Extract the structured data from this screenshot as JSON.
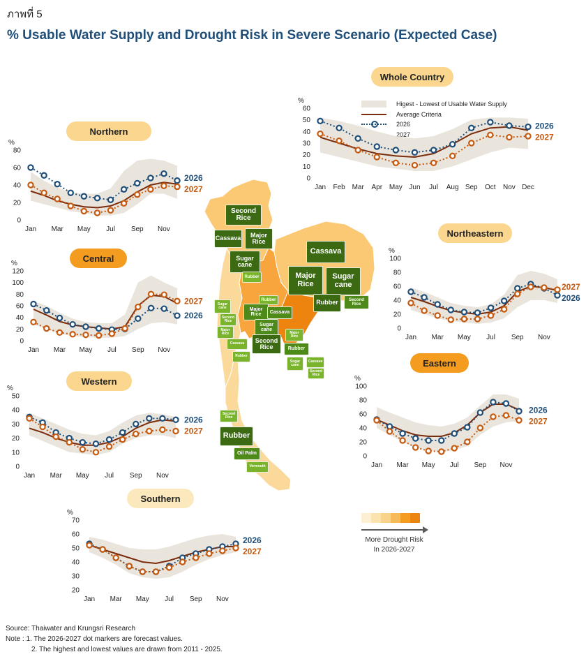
{
  "figure_label": "ภาพที่ 5",
  "title": "% Usable Water Supply and Drought Risk in Severe Scenario (Expected Case)",
  "colors": {
    "band": "#e9e5dc",
    "average": "#7b2c0c",
    "series_2026": "#1f4e79",
    "series_2027": "#c55a11",
    "pill_light": "#fbd68e",
    "pill_dark": "#f39c1f",
    "map_light": "#fbc874",
    "map_mid": "#f7a53c",
    "map_dark": "#ee8410",
    "map_pale": "#fbd99a"
  },
  "legend": {
    "band": "Higest - Lowest of Usable Water Supply",
    "average": "Average Criteria",
    "y2026": "2026",
    "y2027": "2027"
  },
  "chart_data": [
    {
      "id": "northern",
      "type": "line",
      "title": "Northern",
      "unit": "%",
      "ylim": [
        0,
        80
      ],
      "yticks": [
        0,
        20,
        40,
        60,
        80
      ],
      "x_ticks": [
        "Jan",
        "Mar",
        "May",
        "Jul",
        "Sep",
        "Nov"
      ],
      "x": [
        "Jan",
        "Feb",
        "Mar",
        "Apr",
        "May",
        "Jun",
        "Jul",
        "Aug",
        "Sep",
        "Oct",
        "Nov",
        "Dec"
      ],
      "band_high": [
        55,
        45,
        37,
        32,
        30,
        30,
        36,
        56,
        68,
        70,
        68,
        62
      ],
      "band_low": [
        22,
        18,
        14,
        10,
        8,
        5,
        5,
        8,
        18,
        30,
        30,
        24
      ],
      "average": [
        33,
        28,
        22,
        18,
        15,
        14,
        16,
        22,
        32,
        40,
        43,
        41
      ],
      "series": [
        {
          "name": "2026",
          "values": [
            60,
            51,
            41,
            31,
            27,
            25,
            23,
            35,
            42,
            48,
            53,
            45
          ]
        },
        {
          "name": "2027",
          "values": [
            40,
            31,
            24,
            16,
            10,
            8,
            11,
            19,
            29,
            35,
            39,
            38
          ]
        }
      ]
    },
    {
      "id": "central",
      "type": "line",
      "title": "Central",
      "unit": "%",
      "ylim": [
        0,
        120
      ],
      "yticks": [
        0,
        20,
        40,
        60,
        80,
        100,
        120
      ],
      "x_ticks": [
        "Jan",
        "Mar",
        "May",
        "Jul",
        "Sep",
        "Nov"
      ],
      "x": [
        "Jan",
        "Feb",
        "Mar",
        "Apr",
        "May",
        "Jun",
        "Jul",
        "Aug",
        "Sep",
        "Oct",
        "Nov",
        "Dec"
      ],
      "band_high": [
        68,
        60,
        48,
        38,
        32,
        30,
        30,
        45,
        100,
        112,
        100,
        90
      ],
      "band_low": [
        28,
        20,
        12,
        8,
        6,
        5,
        5,
        8,
        20,
        30,
        32,
        28
      ],
      "average": [
        54,
        44,
        33,
        27,
        24,
        22,
        20,
        24,
        60,
        78,
        76,
        64
      ],
      "series": [
        {
          "name": "2026",
          "values": [
            63,
            52,
            39,
            28,
            24,
            21,
            19,
            20,
            38,
            56,
            55,
            43
          ]
        },
        {
          "name": "2027",
          "values": [
            32,
            21,
            14,
            11,
            10,
            9,
            12,
            21,
            58,
            80,
            79,
            68
          ]
        }
      ]
    },
    {
      "id": "western",
      "type": "line",
      "title": "Western",
      "unit": "%",
      "ylim": [
        0,
        50
      ],
      "yticks": [
        0,
        10,
        20,
        30,
        40,
        50
      ],
      "x_ticks": [
        "Jan",
        "Mar",
        "May",
        "Jul",
        "Sep",
        "Nov"
      ],
      "x": [
        "Jan",
        "Feb",
        "Mar",
        "Apr",
        "May",
        "Jun",
        "Jul",
        "Aug",
        "Sep",
        "Oct",
        "Nov",
        "Dec"
      ],
      "band_high": [
        38,
        34,
        30,
        26,
        23,
        22,
        25,
        31,
        36,
        38,
        37,
        35
      ],
      "band_low": [
        22,
        18,
        14,
        10,
        9,
        8,
        10,
        16,
        20,
        22,
        22,
        20
      ],
      "average": [
        27,
        24,
        20,
        17,
        15,
        15,
        17,
        21,
        27,
        31,
        33,
        32
      ],
      "series": [
        {
          "name": "2026",
          "values": [
            35,
            31,
            24,
            20,
            17,
            16,
            19,
            24,
            30,
            34,
            34,
            33
          ]
        },
        {
          "name": "2027",
          "values": [
            34,
            28,
            21,
            17,
            12,
            10,
            14,
            19,
            23,
            25,
            26,
            25
          ]
        }
      ]
    },
    {
      "id": "southern",
      "type": "line",
      "title": "Southern",
      "unit": "%",
      "ylim": [
        20,
        70
      ],
      "yticks": [
        20,
        30,
        40,
        50,
        60,
        70
      ],
      "x_ticks": [
        "Jan",
        "Mar",
        "May",
        "Jul",
        "Sep",
        "Nov"
      ],
      "x": [
        "Jan",
        "Feb",
        "Mar",
        "Apr",
        "May",
        "Jun",
        "Jul",
        "Aug",
        "Sep",
        "Oct",
        "Nov",
        "Dec"
      ],
      "band_high": [
        58,
        56,
        53,
        50,
        49,
        49,
        51,
        54,
        57,
        59,
        60,
        58
      ],
      "band_low": [
        47,
        43,
        38,
        32,
        29,
        28,
        29,
        33,
        38,
        42,
        45,
        47
      ],
      "average": [
        52,
        49,
        46,
        43,
        40,
        39,
        41,
        44,
        47,
        49,
        51,
        51
      ],
      "series": [
        {
          "name": "2026",
          "values": [
            53,
            49,
            43,
            37,
            33,
            33,
            37,
            43,
            46,
            49,
            51,
            53
          ]
        },
        {
          "name": "2027",
          "values": [
            52,
            49,
            43,
            37,
            33,
            33,
            36,
            40,
            43,
            46,
            48,
            50
          ]
        }
      ]
    },
    {
      "id": "whole",
      "type": "line",
      "title": "Whole Country",
      "unit": "%",
      "ylim": [
        0,
        60
      ],
      "yticks": [
        0,
        10,
        20,
        30,
        40,
        50,
        60
      ],
      "x_ticks": [
        "Jan",
        "Feb",
        "Mar",
        "Apr",
        "May",
        "Jun",
        "Jul",
        "Aug",
        "Sep",
        "Oct",
        "Nov",
        "Dec"
      ],
      "x": [
        "Jan",
        "Feb",
        "Mar",
        "Apr",
        "May",
        "Jun",
        "Jul",
        "Aug",
        "Sep",
        "Oct",
        "Nov",
        "Dec"
      ],
      "band_high": [
        52,
        49,
        45,
        40,
        36,
        34,
        36,
        42,
        50,
        52,
        52,
        51
      ],
      "band_low": [
        22,
        18,
        14,
        10,
        8,
        6,
        6,
        10,
        16,
        22,
        26,
        25
      ],
      "average": [
        35,
        30,
        25,
        21,
        19,
        18,
        21,
        29,
        38,
        43,
        44,
        41
      ],
      "series": [
        {
          "name": "2026",
          "values": [
            49,
            43,
            34,
            27,
            24,
            22,
            24,
            29,
            43,
            48,
            45,
            44
          ]
        },
        {
          "name": "2027",
          "values": [
            38,
            32,
            24,
            18,
            13,
            11,
            13,
            19,
            30,
            37,
            35,
            36
          ]
        }
      ]
    },
    {
      "id": "northeastern",
      "type": "line",
      "title": "Northeastern",
      "unit": "%",
      "ylim": [
        0,
        100
      ],
      "yticks": [
        0,
        20,
        40,
        60,
        80,
        100
      ],
      "x_ticks": [
        "Jan",
        "Mar",
        "May",
        "Jul",
        "Sep",
        "Nov"
      ],
      "x": [
        "Jan",
        "Feb",
        "Mar",
        "Apr",
        "May",
        "Jun",
        "Jul",
        "Aug",
        "Sep",
        "Oct",
        "Nov",
        "Dec"
      ],
      "band_high": [
        58,
        52,
        44,
        36,
        32,
        30,
        34,
        48,
        76,
        82,
        78,
        70
      ],
      "band_low": [
        26,
        20,
        14,
        10,
        8,
        6,
        8,
        14,
        30,
        40,
        40,
        36
      ],
      "average": [
        44,
        38,
        31,
        25,
        22,
        20,
        23,
        32,
        52,
        60,
        58,
        54
      ],
      "series": [
        {
          "name": "2026",
          "values": [
            52,
            44,
            34,
            26,
            23,
            22,
            29,
            39,
            57,
            63,
            57,
            47
          ]
        },
        {
          "name": "2027",
          "values": [
            36,
            25,
            18,
            12,
            13,
            13,
            18,
            27,
            49,
            59,
            58,
            55
          ]
        }
      ]
    },
    {
      "id": "eastern",
      "type": "line",
      "title": "Eastern",
      "unit": "%",
      "ylim": [
        0,
        100
      ],
      "yticks": [
        0,
        20,
        40,
        60,
        80,
        100
      ],
      "x_ticks": [
        "Jan",
        "Mar",
        "May",
        "Jul",
        "Sep",
        "Nov"
      ],
      "x": [
        "Jan",
        "Feb",
        "Mar",
        "Apr",
        "May",
        "Jun",
        "Jul",
        "Aug",
        "Sep",
        "Oct",
        "Nov",
        "Dec"
      ],
      "band_high": [
        70,
        62,
        55,
        48,
        44,
        42,
        46,
        55,
        72,
        88,
        88,
        82
      ],
      "band_low": [
        40,
        30,
        20,
        12,
        8,
        6,
        8,
        14,
        30,
        42,
        48,
        50
      ],
      "average": [
        52,
        44,
        36,
        30,
        28,
        28,
        33,
        44,
        62,
        74,
        74,
        66
      ],
      "series": [
        {
          "name": "2026",
          "values": [
            52,
            42,
            32,
            25,
            22,
            22,
            32,
            41,
            62,
            77,
            75,
            64
          ]
        },
        {
          "name": "2027",
          "values": [
            51,
            35,
            22,
            12,
            7,
            6,
            11,
            20,
            40,
            56,
            58,
            51
          ]
        }
      ]
    }
  ],
  "map": {
    "crops": [
      "Second Rice",
      "Cassava",
      "Major Rice",
      "Sugar cane",
      "Rubber",
      "Cassava",
      "Major Rice",
      "Sugar cane",
      "Rubber",
      "Second Rice",
      "Rubber",
      "Sugar cane",
      "Major Rice",
      "Second Rice",
      "Cassava",
      "Sugar cane",
      "Major Rice",
      "Cassava",
      "Second Rice",
      "Rubber",
      "Major Rice",
      "Rubber",
      "Sugar cane",
      "Cassava",
      "Second Rice",
      "Second Rice",
      "Rubber",
      "Oil Palm",
      "Vermouth"
    ]
  },
  "risk_scale": {
    "label_line1": "More Drought Risk",
    "label_line2": "In 2026-2027",
    "colors": [
      "#fdf0d2",
      "#fbe3ad",
      "#fad38a",
      "#f7ba5a",
      "#f39c1f",
      "#ee8410"
    ]
  },
  "footer": {
    "source": "Source: Thaiwater and Krungsri Research",
    "note1": "Note :   1. The 2026-2027 dot markers are forecast values.",
    "note2": "2. The highest and lowest values are drawn from 2011 - 2025."
  }
}
